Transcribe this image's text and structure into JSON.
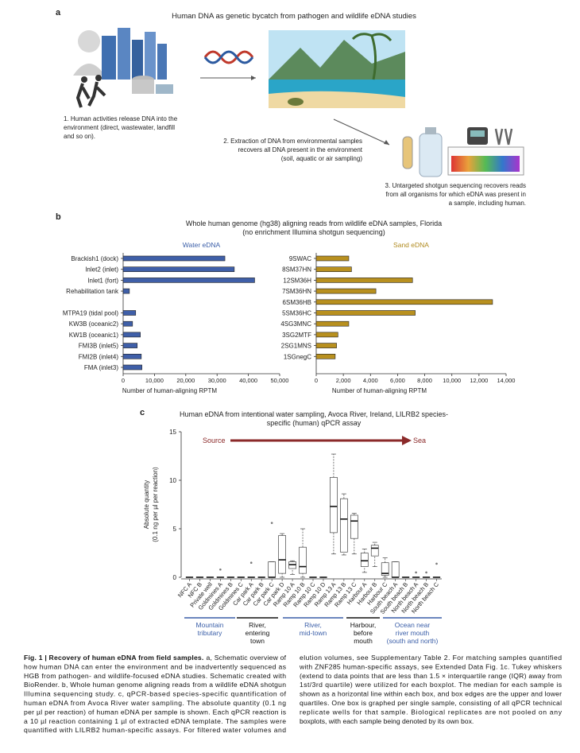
{
  "panel_a": {
    "label": "a",
    "title": "Human DNA as genetic bycatch from pathogen and wildlife eDNA studies",
    "step1": [
      "1. Human activities release DNA into the",
      "environment (direct, wastewater, landfill",
      "and so on)."
    ],
    "step2": [
      "2. Extraction of DNA from environmental samples",
      "recovers all DNA present in the environment",
      "(soil, aquatic or air sampling)"
    ],
    "step3": [
      "3. Untargeted shotgun sequencing recovers reads",
      "from all organisms for which eDNA was present in",
      "a sample, including human."
    ]
  },
  "panel_b": {
    "label": "b",
    "title": [
      "Whole human genome (hg38) aligning reads from wildlife eDNA samples, Florida",
      "(no enrichment Illumina shotgun sequencing)"
    ]
  },
  "panel_c": {
    "label": "c",
    "title": [
      "Human eDNA from intentional water sampling, Avoca River, Ireland, LILRB2 species-",
      "specific (human) qPCR assay"
    ],
    "arrow": {
      "from": "Source",
      "to": "Sea",
      "color": "#8b2a2a"
    },
    "groups": [
      {
        "label": [
          "Mountain",
          "tributary"
        ],
        "color": "#3a5ea8"
      },
      {
        "label": [
          "River,",
          "entering",
          "town"
        ],
        "color": "#111111"
      },
      {
        "label": [
          "River,",
          "mid-town"
        ],
        "color": "#3a5ea8"
      },
      {
        "label": [
          "Harbour,",
          "before",
          "mouth"
        ],
        "color": "#111111"
      },
      {
        "label": [
          "Ocean near",
          "river mouth",
          "(south and north)"
        ],
        "color": "#3a5ea8"
      }
    ]
  },
  "chart_data": [
    {
      "type": "bar",
      "orientation": "horizontal",
      "title": "Water eDNA",
      "title_color": "#3a5ea8",
      "color": "#3f5fa8",
      "categories": [
        "Brackish1 (dock)",
        "Inlet2 (inlet)",
        "Inlet1 (fort)",
        "Rehabilitation tank",
        null,
        "MTPA19 (tidal pool)",
        "KW3B (oceanic2)",
        "KW1B (oceanic1)",
        "FMI3B (inlet5)",
        "FMI2B (inlet4)",
        "FMA (inlet3)"
      ],
      "values": [
        32500,
        35500,
        42000,
        2000,
        null,
        4000,
        3000,
        5500,
        4500,
        5800,
        6000
      ],
      "xlim": [
        0,
        50000
      ],
      "xticks": [
        0,
        {
          "value": 10000,
          "label": "10,000"
        },
        {
          "value": 20000,
          "label": "20,000"
        },
        {
          "value": 30000,
          "label": "30,000"
        },
        {
          "value": 40000,
          "label": "40,000"
        },
        {
          "value": 50000,
          "label": "50,000"
        }
      ],
      "xlabel": "Number of human-aligning RPTM"
    },
    {
      "type": "bar",
      "orientation": "horizontal",
      "title": "Sand eDNA",
      "title_color": "#b08a1e",
      "color": "#b8901f",
      "categories": [
        "9SWAC",
        "8SM37HN",
        "12SM36H",
        "7SM36HN",
        "6SM36HB",
        "5SM36HC",
        "4SG3MNC",
        "3SG2MTF",
        "2SG1MNS",
        "1SGnegC"
      ],
      "values": [
        2400,
        2600,
        7100,
        4400,
        13000,
        7300,
        2400,
        1600,
        1500,
        1400
      ],
      "xlim": [
        0,
        14000
      ],
      "xticks": [
        0,
        {
          "value": 2000,
          "label": "2,000"
        },
        {
          "value": 4000,
          "label": "4,000"
        },
        {
          "value": 6000,
          "label": "6,000"
        },
        {
          "value": 8000,
          "label": "8,000"
        },
        {
          "value": 10000,
          "label": "10,000"
        },
        {
          "value": 12000,
          "label": "12,000"
        },
        {
          "value": 14000,
          "label": "14,000"
        }
      ],
      "xlabel": "Number of human-aligning RPTM"
    },
    {
      "type": "box",
      "categories": [
        "NFC A",
        "NFC B",
        "Private well",
        "Goldmines A",
        "Goldmines B",
        "Goldmines C",
        "Car park A",
        "Car park B",
        "Car park C",
        "Car park D",
        "Ramp 10 A",
        "Ramp 10 B",
        "Ramp 10 C",
        "Ramp 10 D",
        "Ramp 13 A",
        "Ramp 13 B",
        "Ramp 13 C",
        "Harbour A",
        "Harbour B",
        "Harbour C",
        "South beach A",
        "South beach B",
        "North beach A",
        "North beach B",
        "North beach C"
      ],
      "min": [
        0,
        0,
        0,
        0,
        0,
        0,
        0,
        0,
        0,
        0,
        0.3,
        0,
        0,
        0,
        2.4,
        2.3,
        2.4,
        0.5,
        1.1,
        0,
        0,
        0,
        0,
        0,
        0
      ],
      "q1": [
        0,
        0,
        0,
        0,
        0,
        0,
        0,
        0,
        0,
        0.4,
        0.9,
        0.4,
        0,
        0,
        4.6,
        2.6,
        4.0,
        1.1,
        2.2,
        0.2,
        0,
        0,
        0,
        0,
        0
      ],
      "median": [
        0,
        0,
        0,
        0,
        0,
        0,
        0,
        0,
        0,
        1.8,
        1.3,
        1.1,
        0,
        0,
        7.3,
        6.0,
        5.8,
        1.7,
        3.0,
        0.4,
        0,
        0,
        0,
        0,
        0
      ],
      "q3": [
        0,
        0,
        0,
        0,
        0,
        0,
        0,
        0,
        1.6,
        4.3,
        1.6,
        3.1,
        0,
        0,
        10.3,
        8.1,
        6.4,
        2.5,
        3.3,
        1.5,
        1.6,
        0,
        0,
        0,
        0
      ],
      "max": [
        0,
        0,
        0,
        0,
        0,
        0,
        0,
        0,
        1.6,
        4.5,
        1.7,
        5.0,
        0,
        0,
        12.7,
        8.6,
        6.6,
        2.9,
        3.6,
        2.0,
        1.6,
        0,
        0,
        0,
        0
      ],
      "outliers": [
        [],
        [],
        [],
        [
          0.8
        ],
        [],
        [],
        [
          1.5
        ],
        [],
        [
          5.6
        ],
        [],
        [],
        [],
        [],
        [],
        [],
        [],
        [],
        [],
        [],
        [],
        [],
        [],
        [
          0.5
        ],
        [
          0.5
        ],
        [
          1.4
        ]
      ],
      "ylim": [
        0,
        15
      ],
      "yticks": [
        0,
        5,
        10,
        15
      ],
      "ylabel": [
        "Absolute quantity",
        "(0.1 ng per µl per reaction)"
      ]
    }
  ],
  "caption": {
    "heading": "Fig. 1 | Recovery of human eDNA from field samples.",
    "left": [
      "a, Schematic overview of",
      "how human DNA can enter the environment and be inadvertently sequenced as",
      "HGB from pathogen- and wildlife-focused eDNA studies. Schematic created with",
      "BioRender. b, Whole human genome aligning reads from a wildlife eDNA shotgun",
      "Illumina sequencing study. c, qPCR-based species-specific quantification of",
      "human eDNA from Avoca River water sampling. The absolute quantity (0.1 ng",
      "per µl per reaction) of human eDNA per sample is shown. Each qPCR reaction is",
      "a 10 µl reaction containing 1 µl of extracted eDNA template. The samples were",
      "quantified with LILRB2 human-specific assays. For filtered water volumes and"
    ],
    "right": [
      "elution volumes, see Supplementary Table 2. For matching samples quantified",
      "with ZNF285 human-specific assays, see Extended Data Fig. 1c. Tukey whiskers",
      "(extend to data points that are less than 1.5 × interquartile range (IQR) away from",
      "1st/3rd quartile) were utilized for each boxplot. The median for each sample is",
      "shown as a horizontal line within each box, and box edges are the upper and lower",
      "quartiles. One box is graphed per single sample, consisting of all qPCR technical",
      "replicate wells for that sample. Biological replicates are not pooled on any",
      "boxplots, with each sample being denoted by its own box."
    ]
  }
}
